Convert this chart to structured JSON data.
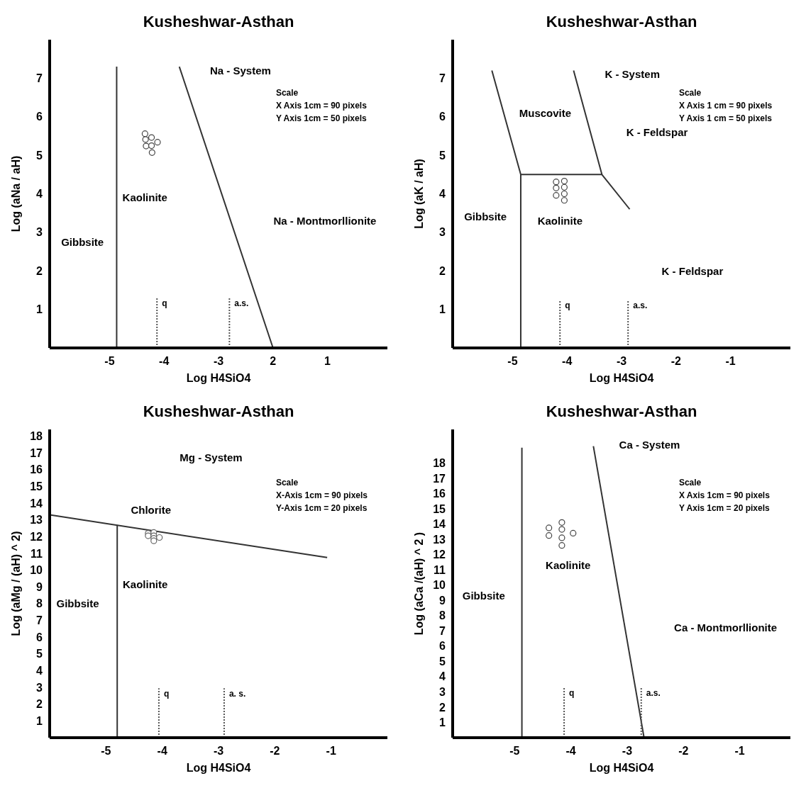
{
  "chart_data": [
    {
      "type": "line",
      "title": "Kusheshwar-Asthan",
      "xlabel": "Log H4SiO4",
      "ylabel": "Log (aNa / aH)",
      "xlim": [
        -6.1,
        0.1
      ],
      "ylim": [
        0,
        8
      ],
      "xticks": [
        -5,
        -4,
        -3,
        {
          "value": -2,
          "label": "2"
        },
        {
          "value": -1,
          "label": "1"
        }
      ],
      "yticks": [
        1,
        2,
        3,
        4,
        5,
        6,
        7
      ],
      "series": [
        {
          "type": "line",
          "color": "#333333",
          "x": [
            -4.87,
            -4.87
          ],
          "values": [
            0,
            7.3
          ]
        },
        {
          "type": "line",
          "color": "#333333",
          "x": [
            -3.72,
            -2
          ],
          "values": [
            7.3,
            0
          ]
        },
        {
          "type": "line",
          "color": "#555555",
          "line_style": "dotted",
          "x": [
            -4.13,
            -4.13
          ],
          "values": [
            0,
            1.3
          ]
        },
        {
          "type": "line",
          "color": "#555555",
          "line_style": "dotted",
          "x": [
            -2.8,
            -2.8
          ],
          "values": [
            0,
            1.3
          ]
        },
        {
          "type": "scatter",
          "marker": "circle",
          "color": "#444444",
          "x": [
            -4.35,
            -4.34,
            -4.33,
            -4.23,
            -4.23,
            -4.22,
            -4.12
          ],
          "values": [
            5.56,
            5.41,
            5.24,
            5.46,
            5.25,
            5.07,
            5.34
          ]
        }
      ],
      "annotations": [
        "Scale",
        "X Axis 1cm = 90 pixels",
        "Y Axis 1cm = 50 pixels",
        "Na - System",
        "Kaolinite",
        "Gibbsite",
        "Na - Montmorllionite",
        {
          "text": "q",
          "x": -4.13,
          "y": 1.3
        },
        {
          "text": "a.s.",
          "x": -2.8,
          "y": 1.3
        }
      ]
    },
    {
      "type": "line",
      "title": "Kusheshwar-Asthan",
      "xlabel": "Log H4SiO4",
      "ylabel": "Log (aK / aH)",
      "xlim": [
        -6.1,
        0.1
      ],
      "ylim": [
        0,
        8
      ],
      "xticks": [
        -5,
        -4,
        -3,
        -2,
        -1
      ],
      "yticks": [
        1,
        2,
        3,
        4,
        5,
        6,
        7
      ],
      "series": [
        {
          "type": "line",
          "color": "#333333",
          "x": [
            -5.38,
            -4.85,
            -3.36,
            -2.85,
            null,
            -4.85,
            -4.85,
            null,
            -3.88,
            -3.36
          ],
          "values": [
            7.2,
            4.5,
            4.5,
            3.6,
            null,
            4.5,
            0,
            null,
            7.2,
            4.5
          ]
        },
        {
          "type": "line",
          "color": "#555555",
          "line_style": "dotted",
          "x": [
            -4.13,
            -4.13
          ],
          "values": [
            0,
            1.25
          ]
        },
        {
          "type": "line",
          "color": "#555555",
          "line_style": "dotted",
          "x": [
            -2.88,
            -2.88
          ],
          "values": [
            0,
            1.25
          ]
        },
        {
          "type": "scatter",
          "marker": "circle",
          "color": "#444444",
          "x": [
            -4.2,
            -4.2,
            -4.2,
            -4.05,
            -4.05,
            -4.05,
            -4.05
          ],
          "values": [
            4.31,
            4.15,
            3.96,
            4.33,
            4.17,
            4.0,
            3.83
          ]
        }
      ],
      "annotations": [
        "Scale",
        "X Axis 1 cm = 90 pixels",
        "Y Axis 1 cm = 50 pixels",
        "K - System",
        "Muscovite",
        "K - Feldspar",
        "Gibbsite",
        "Kaolinite",
        "K - Feldspar",
        {
          "text": "q",
          "x": -4.13,
          "y": 1.25
        },
        {
          "text": "a.s.",
          "x": -2.88,
          "y": 1.25
        }
      ]
    },
    {
      "type": "line",
      "title": "Kusheshwar-Asthan",
      "xlabel": "Log H4SiO4",
      "ylabel": "Log (aMg / (aH) ^ 2)",
      "xlim": [
        -6,
        0
      ],
      "ylim": [
        0,
        18.4
      ],
      "xticks": [
        -5,
        -4,
        -3,
        -2,
        -1
      ],
      "yticks": [
        1,
        2,
        3,
        4,
        5,
        6,
        7,
        8,
        9,
        10,
        11,
        12,
        13,
        14,
        15,
        16,
        17,
        18
      ],
      "series": [
        {
          "type": "line",
          "color": "#333333",
          "x": [
            -6,
            -1.07
          ],
          "values": [
            13.3,
            10.75
          ]
        },
        {
          "type": "line",
          "color": "#333333",
          "x": [
            -4.8,
            -4.8
          ],
          "values": [
            0,
            12.7
          ]
        },
        {
          "type": "line",
          "color": "#555555",
          "line_style": "dotted",
          "x": [
            -4.06,
            -4.06
          ],
          "values": [
            0,
            2.95
          ]
        },
        {
          "type": "line",
          "color": "#555555",
          "line_style": "dotted",
          "x": [
            -2.9,
            -2.9
          ],
          "values": [
            0,
            2.95
          ]
        },
        {
          "type": "scatter",
          "marker": "circle",
          "color": "#666666",
          "x": [
            -4.25,
            -4.25,
            -4.15,
            -4.15,
            -4.15,
            -4.15,
            -4.05
          ],
          "values": [
            12.2,
            12.05,
            12.25,
            12.05,
            11.9,
            11.75,
            11.95
          ]
        }
      ],
      "annotations": [
        "Scale",
        "X-Axis 1cm = 90 pixels",
        "Y-Axis 1cm = 20 pixels",
        "Mg - System",
        "Chlorite",
        "Kaolinite",
        "Gibbsite",
        {
          "text": "q",
          "x": -4.06,
          "y": 2.95
        },
        {
          "text": "a. s.",
          "x": -2.9,
          "y": 2.95
        }
      ]
    },
    {
      "type": "line",
      "title": "Kusheshwar-Asthan",
      "xlabel": "Log H4SiO4",
      "ylabel": "Log (aCa /(aH) ^ 2 )",
      "xlim": [
        -6.1,
        -0.1
      ],
      "ylim": [
        0,
        20.2
      ],
      "xticks": [
        -5,
        -4,
        -3,
        -2,
        -1
      ],
      "yticks": [
        1,
        2,
        3,
        4,
        5,
        6,
        7,
        8,
        9,
        10,
        11,
        12,
        13,
        14,
        15,
        16,
        17,
        18
      ],
      "series": [
        {
          "type": "line",
          "color": "#333333",
          "x": [
            -4.87,
            -4.87
          ],
          "values": [
            0,
            19
          ]
        },
        {
          "type": "line",
          "color": "#333333",
          "x": [
            -3.6,
            -2.7
          ],
          "values": [
            19.1,
            0
          ]
        },
        {
          "type": "line",
          "color": "#555555",
          "line_style": "dotted",
          "x": [
            -4.12,
            -4.12
          ],
          "values": [
            0,
            3.3
          ]
        },
        {
          "type": "line",
          "color": "#555555",
          "line_style": "dotted",
          "x": [
            -2.75,
            -2.75
          ],
          "values": [
            0,
            3.3
          ]
        },
        {
          "type": "scatter",
          "marker": "circle",
          "color": "#444444",
          "x": [
            -4.39,
            -4.39,
            -4.16,
            -4.16,
            -4.16,
            -4.16,
            -3.96
          ],
          "values": [
            13.75,
            13.25,
            14.1,
            13.65,
            13.1,
            12.6,
            13.4
          ]
        }
      ],
      "annotations": [
        "Scale",
        "X Axis 1cm = 90 pixels",
        "Y Axis 1cm = 20 pixels",
        "Ca - System",
        "Kaolinite",
        "Gibbsite",
        "Ca - Montmorllionite",
        {
          "text": "q",
          "x": -4.12,
          "y": 3.3
        },
        {
          "text": "a.s.",
          "x": -2.75,
          "y": 3.3
        }
      ]
    }
  ]
}
